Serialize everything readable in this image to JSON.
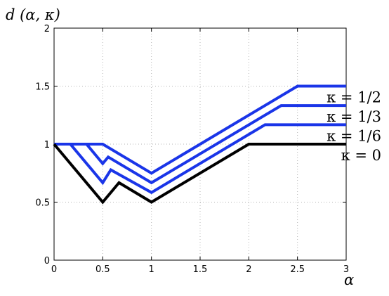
{
  "chart_data": {
    "type": "line",
    "title": "",
    "xlabel": "α",
    "ylabel": "d (α, κ)",
    "xlim": [
      0,
      3
    ],
    "ylim": [
      0,
      2
    ],
    "grid": true,
    "xticks": [
      0,
      0.5,
      1,
      1.5,
      2,
      2.5,
      3
    ],
    "xtick_labels": [
      "0",
      "0.5",
      "1",
      "1.5",
      "2",
      "2.5",
      "3"
    ],
    "yticks": [
      0,
      0.5,
      1,
      1.5,
      2
    ],
    "ytick_labels": [
      "0",
      "0.5",
      "1",
      "1.5",
      "2"
    ],
    "series": [
      {
        "name": "κ = 1/2",
        "color": "#1a35e8",
        "x": [
          0,
          0.5,
          1,
          2.5,
          3
        ],
        "y": [
          1,
          1,
          0.75,
          1.5,
          1.5
        ]
      },
      {
        "name": "κ = 1/3",
        "color": "#1a35e8",
        "x": [
          0,
          0.333,
          0.5,
          0.556,
          1,
          2.333,
          3
        ],
        "y": [
          1,
          1,
          0.833,
          0.889,
          0.667,
          1.333,
          1.333
        ]
      },
      {
        "name": "κ = 1/6",
        "color": "#1a35e8",
        "x": [
          0,
          0.167,
          0.5,
          0.583,
          1,
          2.167,
          3
        ],
        "y": [
          1,
          1,
          0.667,
          0.778,
          0.583,
          1.167,
          1.167
        ]
      },
      {
        "name": "κ = 0",
        "color": "#000000",
        "x": [
          0,
          0.5,
          0.667,
          1,
          2,
          3
        ],
        "y": [
          1,
          0.5,
          0.667,
          0.5,
          1,
          1
        ]
      }
    ]
  }
}
